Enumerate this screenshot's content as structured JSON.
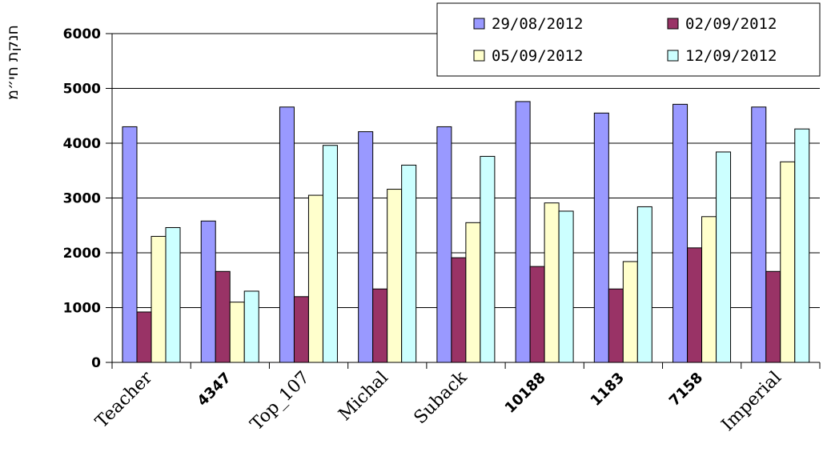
{
  "chart_data": {
    "type": "bar",
    "ylabel": "חנקת חי״מ",
    "ylim": [
      0,
      6000
    ],
    "yticks": [
      0,
      1000,
      2000,
      3000,
      4000,
      5000,
      6000
    ],
    "grid": true,
    "legend_position": "top-right",
    "categories": [
      "Teacher",
      "4347",
      "Top_107",
      "Michal",
      "Suback",
      "10188",
      "1183",
      "7158",
      "Imperial"
    ],
    "series": [
      {
        "name": "29/08/2012",
        "color": "#9999ff",
        "values": [
          4300,
          2580,
          4660,
          4210,
          4300,
          4760,
          4550,
          4710,
          4660
        ]
      },
      {
        "name": "02/09/2012",
        "color": "#993366",
        "values": [
          920,
          1660,
          1200,
          1340,
          1910,
          1750,
          1340,
          2090,
          1660
        ]
      },
      {
        "name": "05/09/2012",
        "color": "#ffffcc",
        "values": [
          2300,
          1100,
          3050,
          3160,
          2550,
          2910,
          1840,
          2660,
          3660
        ]
      },
      {
        "name": "12/09/2012",
        "color": "#ccffff",
        "values": [
          2460,
          1300,
          3960,
          3600,
          3760,
          2760,
          2840,
          3840,
          4260
        ]
      }
    ]
  }
}
